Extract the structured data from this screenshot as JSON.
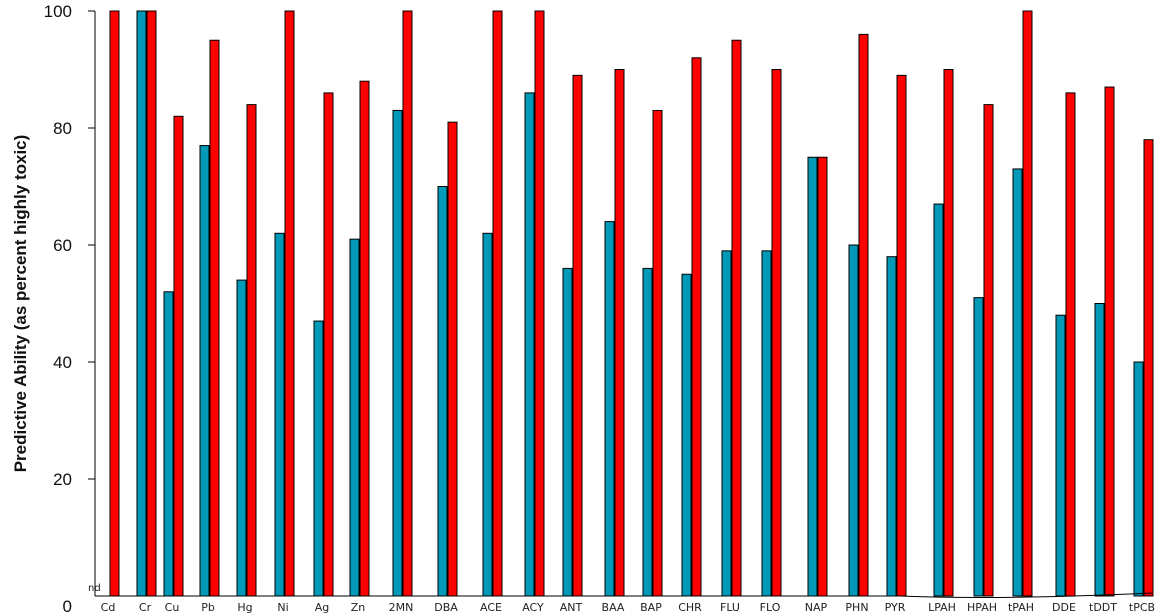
{
  "chart_data": {
    "type": "bar",
    "ylabel": "Predictive Ability (as percent highly toxic)",
    "xlabel": "",
    "ylim": [
      0,
      100
    ],
    "yticks": [
      0,
      20,
      40,
      60,
      80,
      100
    ],
    "grid": false,
    "categories": [
      "Cd",
      "Cr",
      "Cu",
      "Pb",
      "Hg",
      "Ni",
      "Ag",
      "Zn",
      "2MN",
      "DBA",
      "ACE",
      "ACY",
      "ANT",
      "BAA",
      "BAP",
      "CHR",
      "FLU",
      "FLO",
      "NAP",
      "PHN",
      "PYR",
      "LPAH",
      "HPAH",
      "tPAH",
      "DDE",
      "tDDT",
      "tPCB"
    ],
    "series": [
      {
        "color": "#0099b8",
        "values": [
          null,
          100,
          52,
          77,
          54,
          62,
          47,
          61,
          83,
          70,
          62,
          86,
          56,
          64,
          56,
          55,
          59,
          59,
          75,
          60,
          58,
          67,
          51,
          73,
          48,
          50,
          40
        ]
      },
      {
        "color": "#ff0000",
        "values": [
          100,
          100,
          82,
          95,
          84,
          100,
          86,
          88,
          100,
          81,
          100,
          100,
          89,
          90,
          83,
          92,
          95,
          90,
          75,
          96,
          89,
          90,
          84,
          100,
          86,
          87,
          78
        ]
      }
    ],
    "annotations": [
      {
        "category": "Cd",
        "text": "nd"
      }
    ]
  }
}
